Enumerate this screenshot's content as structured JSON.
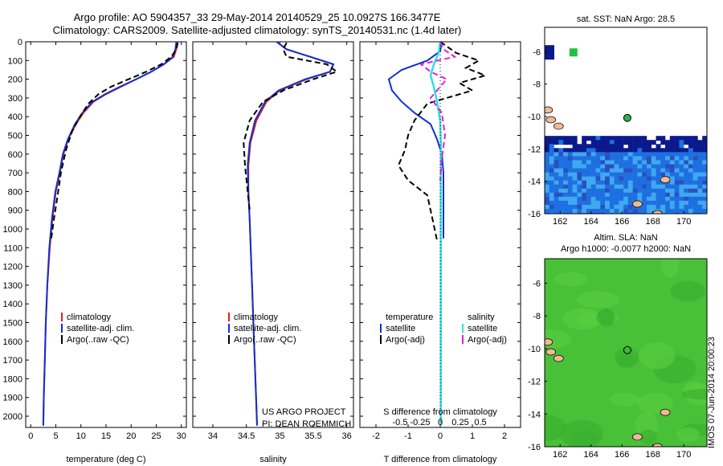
{
  "header": {
    "title_line1": "Argo profile: AO 5904357_33 29-May-2014 20140529_25 10.0927S 166.3477E",
    "title_line2": "Climatology: CARS2009. Satellite-adjusted climatology: synTS_20140531.nc (1.4d later)"
  },
  "side_text": "IMOS 07-Jun-2014 20:00:23",
  "credits": {
    "line1": "US ARGO PROJECT",
    "line2": "PI: DEAN ROEMMICH"
  },
  "colors": {
    "climatology": "#e02020",
    "satellite": "#1030d0",
    "argo": "#000000",
    "sat_salinity": "#30e0e0",
    "argo_salinity": "#e020e0",
    "sst_deep": "#0a1a8c",
    "sst_mid": "#1e6fe0",
    "sst_light": "#40a8f0",
    "sla_green": "#48c038",
    "land": "#f0b898"
  },
  "chart_data": [
    {
      "type": "line",
      "xlabel": "temperature (deg C)",
      "ylabel": "",
      "xlim": [
        -1,
        31
      ],
      "ylim": [
        2060,
        0
      ],
      "xticks": [
        0,
        5,
        10,
        15,
        20,
        25,
        30
      ],
      "yticks": [
        0,
        100,
        200,
        300,
        400,
        500,
        600,
        700,
        800,
        900,
        1000,
        1100,
        1200,
        1300,
        1400,
        1500,
        1600,
        1700,
        1800,
        1900,
        2000
      ],
      "legend": [
        "climatology",
        "satellite-adj. clim.",
        "Argo(..raw -QC)"
      ],
      "series": [
        {
          "name": "climatology",
          "x": [
            29.2,
            29.0,
            28.5,
            26.5,
            24.0,
            21.0,
            18.0,
            15.0,
            12.5,
            10.5,
            9.0,
            7.5,
            6.5,
            5.8,
            5.0,
            4.3,
            3.8,
            3.3,
            3.0,
            2.8,
            2.6,
            2.5
          ],
          "y": [
            0,
            40,
            80,
            120,
            160,
            200,
            240,
            280,
            320,
            380,
            440,
            520,
            600,
            700,
            800,
            950,
            1100,
            1300,
            1500,
            1700,
            1900,
            2050
          ]
        },
        {
          "name": "satellite-adj. clim.",
          "x": [
            29.0,
            28.8,
            28.3,
            26.5,
            24.0,
            21.0,
            17.8,
            14.8,
            12.3,
            10.3,
            8.8,
            7.4,
            6.4,
            5.7,
            4.9,
            4.2,
            3.7,
            3.3,
            3.0,
            2.8,
            2.6,
            2.5
          ],
          "y": [
            0,
            40,
            80,
            120,
            160,
            200,
            240,
            280,
            320,
            380,
            440,
            520,
            600,
            700,
            800,
            950,
            1100,
            1300,
            1500,
            1700,
            1900,
            2050
          ]
        },
        {
          "name": "Argo(..raw -QC)",
          "x": [
            29.3,
            29.0,
            28.0,
            26.0,
            23.0,
            19.5,
            16.0,
            13.5,
            11.5,
            9.8,
            8.2,
            7.0,
            6.0,
            5.3,
            4.6,
            4.1
          ],
          "y": [
            5,
            40,
            80,
            120,
            160,
            200,
            240,
            280,
            330,
            400,
            480,
            580,
            700,
            830,
            950,
            1050
          ]
        }
      ]
    },
    {
      "type": "line",
      "xlabel": "salinity",
      "xlim": [
        33.7,
        36.1
      ],
      "ylim": [
        2060,
        0
      ],
      "xticks": [
        34,
        34.5,
        35,
        35.5,
        36
      ],
      "legend": [
        "climatology",
        "satellite-adj. clim.",
        "Argo(..raw -QC)"
      ],
      "series": [
        {
          "name": "climatology",
          "x": [
            34.95,
            35.1,
            35.45,
            35.8,
            35.75,
            35.4,
            35.0,
            34.8,
            34.65,
            34.56,
            34.53,
            34.53,
            34.55,
            34.57,
            34.59,
            34.61,
            34.63,
            34.65,
            34.66
          ],
          "y": [
            0,
            40,
            80,
            120,
            160,
            200,
            260,
            320,
            420,
            540,
            660,
            800,
            950,
            1150,
            1350,
            1550,
            1750,
            1950,
            2050
          ]
        },
        {
          "name": "satellite-adj. clim.",
          "x": [
            34.95,
            35.1,
            35.45,
            35.8,
            35.75,
            35.38,
            34.98,
            34.78,
            34.63,
            34.55,
            34.52,
            34.53,
            34.55,
            34.57,
            34.59,
            34.61,
            34.63,
            34.65,
            34.66
          ],
          "y": [
            0,
            40,
            80,
            120,
            160,
            200,
            260,
            320,
            420,
            540,
            660,
            800,
            950,
            1150,
            1350,
            1550,
            1750,
            1950,
            2050
          ]
        },
        {
          "name": "Argo(..raw -QC)",
          "x": [
            35.1,
            35.05,
            35.1,
            35.7,
            35.85,
            35.5,
            35.05,
            34.75,
            34.55,
            34.46,
            34.48,
            34.52,
            34.55
          ],
          "y": [
            5,
            40,
            80,
            120,
            160,
            200,
            260,
            320,
            420,
            540,
            660,
            800,
            900
          ]
        }
      ]
    },
    {
      "type": "line",
      "xlabel": "T difference from climatology",
      "x2label": "S difference from climatology",
      "xlim": [
        -2.5,
        2.5
      ],
      "ylim": [
        2060,
        0
      ],
      "xticks": [
        -2,
        -1,
        0,
        1,
        2
      ],
      "x2ticks": [
        -0.5,
        -0.25,
        0,
        0.25,
        0.5
      ],
      "legend_headers": [
        "temperature",
        "salinity"
      ],
      "legend": [
        "satellite",
        "Argo(-adj)",
        "satellite",
        "Argo(-adj)"
      ],
      "series": [
        {
          "name": "satellite",
          "group": "temperature",
          "x": [
            0.05,
            0.0,
            -0.4,
            -1.2,
            -1.6,
            -1.5,
            -1.2,
            -0.8,
            -0.3,
            -0.1,
            0.05,
            0.1,
            0.1,
            0.1,
            0.1,
            0.1
          ],
          "y": [
            0,
            50,
            100,
            150,
            200,
            260,
            320,
            380,
            440,
            520,
            600,
            700,
            800,
            900,
            1000,
            1050
          ]
        },
        {
          "name": "Argo(-adj)",
          "group": "temperature",
          "x": [
            0.0,
            0.5,
            1.2,
            0.8,
            1.4,
            0.6,
            1.0,
            -0.4,
            -0.8,
            -1.0,
            -1.1,
            -1.3,
            -1.0,
            -0.4,
            -0.3,
            -0.2,
            -0.1
          ],
          "y": [
            0,
            60,
            100,
            140,
            180,
            220,
            260,
            330,
            420,
            500,
            580,
            660,
            740,
            820,
            900,
            980,
            1060
          ]
        },
        {
          "name": "satellite",
          "group": "salinity",
          "x": [
            0.0,
            -0.05,
            -0.2,
            -0.3,
            -0.2,
            -0.1,
            0.0,
            0.02,
            0.02,
            0.02,
            0.02,
            0.02,
            0.02,
            0.02,
            0.02,
            0.02
          ],
          "y": [
            0,
            60,
            120,
            180,
            240,
            320,
            420,
            540,
            700,
            900,
            1100,
            1300,
            1500,
            1700,
            1900,
            2050
          ]
        },
        {
          "name": "Argo(-adj)",
          "group": "salinity",
          "x": [
            0.0,
            0.1,
            0.45,
            -0.6,
            -0.3,
            0.2,
            0.0,
            -0.3,
            0.05,
            0.15,
            0.05,
            0.0
          ],
          "y": [
            0,
            40,
            80,
            120,
            160,
            200,
            240,
            300,
            380,
            500,
            620,
            740
          ]
        }
      ]
    },
    {
      "type": "heatmap",
      "title": "sat. SST: NaN Argo: 28.5",
      "xticks": [
        162,
        164,
        166,
        168,
        170
      ],
      "yticks": [
        -6,
        -8,
        -10,
        -12,
        -14,
        -16
      ],
      "xlim": [
        161,
        171.5
      ],
      "ylim": [
        -16,
        -4.5
      ],
      "argo_position": [
        166.35,
        -10.09
      ]
    },
    {
      "type": "heatmap",
      "title": "Altim. SLA: NaN",
      "subtitle": "Argo h1000: -0.0077 h2000: NaN",
      "xticks": [
        162,
        164,
        166,
        168,
        170
      ],
      "yticks": [
        -6,
        -8,
        -10,
        -12,
        -14,
        -16
      ],
      "xlim": [
        161,
        171.5
      ],
      "ylim": [
        -16,
        -4.5
      ],
      "argo_position": [
        166.35,
        -10.09
      ]
    }
  ]
}
